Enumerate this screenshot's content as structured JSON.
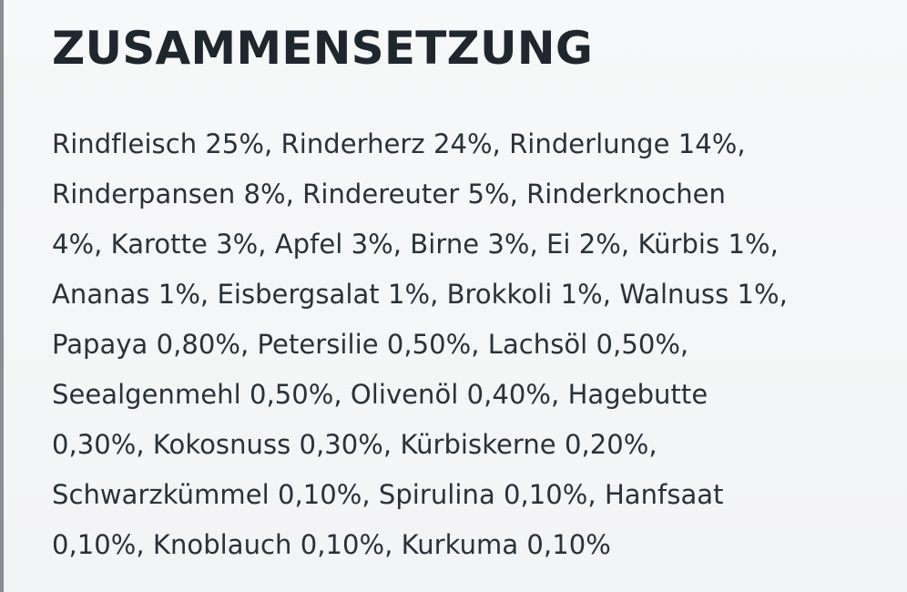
{
  "section": {
    "title": "ZUSAMMENSETZUNG",
    "lines": [
      "Rindfleisch 25%, Rinderherz 24%, Rinderlunge 14%,",
      "Rinderpansen 8%, Rindereuter 5%, Rinderknochen",
      "4%, Karotte 3%, Apfel 3%, Birne 3%, Ei 2%, Kürbis 1%,",
      "Ananas 1%, Eisbergsalat 1%, Brokkoli 1%, Walnuss 1%,",
      "Papaya 0,80%, Petersilie 0,50%, Lachsöl 0,50%,",
      "Seealgenmehl 0,50%, Olivenöl 0,40%, Hagebutte",
      "0,30%, Kokosnuss 0,30%, Kürbiskerne 0,20%,",
      "Schwarzkümmel 0,10%, Spirulina 0,10%, Hanfsaat",
      "0,10%, Knoblauch 0,10%, Kurkuma 0,10%"
    ]
  }
}
